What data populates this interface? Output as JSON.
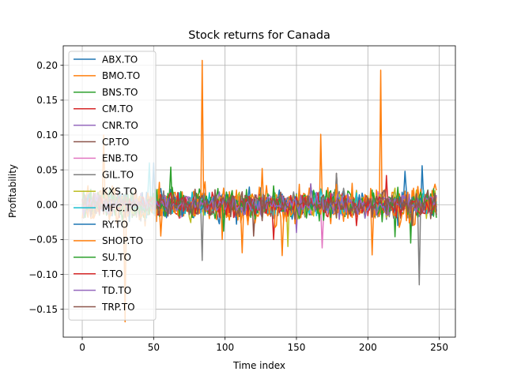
{
  "chart_data": {
    "type": "line",
    "title": "Stock returns for Canada",
    "xlabel": "Time index",
    "ylabel": "Profitability",
    "xlim": [
      -13.3,
      261.3
    ],
    "ylim": [
      -0.19,
      0.228
    ],
    "xticks": [
      0,
      50,
      100,
      150,
      200,
      250
    ],
    "yticks": [
      -0.15,
      -0.1,
      -0.05,
      0.0,
      0.05,
      0.1,
      0.15,
      0.2
    ],
    "ytick_labels": [
      "−0.15",
      "−0.10",
      "−0.05",
      "0.00",
      "0.05",
      "0.10",
      "0.15",
      "0.20"
    ],
    "grid": true,
    "legend_position": "upper-left",
    "n_points": 249,
    "series": [
      {
        "name": "ABX.TO",
        "color": "#1f77b4",
        "amplitude": 0.018,
        "spikes": [
          [
            226,
            0.048
          ],
          [
            238,
            0.056
          ],
          [
            221,
            -0.03
          ]
        ]
      },
      {
        "name": "BMO.TO",
        "color": "#ff7f0e",
        "amplitude": 0.022,
        "spikes": [
          [
            84,
            0.207
          ],
          [
            209,
            0.193
          ],
          [
            167,
            0.101
          ],
          [
            30,
            -0.168
          ],
          [
            55,
            -0.045
          ],
          [
            112,
            -0.069
          ],
          [
            140,
            -0.073
          ],
          [
            203,
            -0.072
          ],
          [
            15,
            0.1
          ]
        ]
      },
      {
        "name": "BNS.TO",
        "color": "#2ca02c",
        "amplitude": 0.016,
        "spikes": [
          [
            62,
            0.054
          ],
          [
            219,
            -0.046
          ],
          [
            230,
            -0.055
          ]
        ]
      },
      {
        "name": "CM.TO",
        "color": "#d62728",
        "amplitude": 0.014,
        "spikes": [
          [
            134,
            -0.05
          ],
          [
            213,
            0.042
          ]
        ]
      },
      {
        "name": "CNR.TO",
        "color": "#9467bd",
        "amplitude": 0.014,
        "spikes": [
          [
            150,
            -0.04
          ]
        ]
      },
      {
        "name": "CP.TO",
        "color": "#8c564b",
        "amplitude": 0.014,
        "spikes": [
          [
            120,
            -0.045
          ],
          [
            178,
            0.045
          ]
        ]
      },
      {
        "name": "ENB.TO",
        "color": "#e377c2",
        "amplitude": 0.012,
        "spikes": [
          [
            168,
            -0.062
          ]
        ]
      },
      {
        "name": "GIL.TO",
        "color": "#7f7f7f",
        "amplitude": 0.016,
        "spikes": [
          [
            84,
            -0.08
          ],
          [
            236,
            -0.115
          ],
          [
            178,
            0.045
          ]
        ]
      },
      {
        "name": "KXS.TO",
        "color": "#bcbd22",
        "amplitude": 0.016,
        "spikes": [
          [
            144,
            -0.06
          ]
        ]
      },
      {
        "name": "MFC.TO",
        "color": "#17becf",
        "amplitude": 0.014,
        "spikes": [
          [
            47,
            0.06
          ]
        ]
      },
      {
        "name": "RY.TO",
        "color": "#1f77b4",
        "amplitude": 0.012,
        "spikes": [
          [
            50,
            0.06
          ]
        ]
      },
      {
        "name": "SHOP.TO",
        "color": "#ff7f0e",
        "amplitude": 0.024,
        "spikes": [
          [
            126,
            0.052
          ],
          [
            98,
            -0.05
          ]
        ]
      },
      {
        "name": "SU.TO",
        "color": "#2ca02c",
        "amplitude": 0.018,
        "spikes": [
          [
            99,
            -0.038
          ]
        ]
      },
      {
        "name": "T.TO",
        "color": "#d62728",
        "amplitude": 0.012,
        "spikes": [
          [
            192,
            -0.03
          ]
        ]
      },
      {
        "name": "TD.TO",
        "color": "#9467bd",
        "amplitude": 0.013,
        "spikes": [
          [
            160,
            0.03
          ]
        ]
      },
      {
        "name": "TRP.TO",
        "color": "#8c564b",
        "amplitude": 0.014,
        "spikes": [
          [
            231,
            -0.03
          ]
        ]
      }
    ]
  }
}
